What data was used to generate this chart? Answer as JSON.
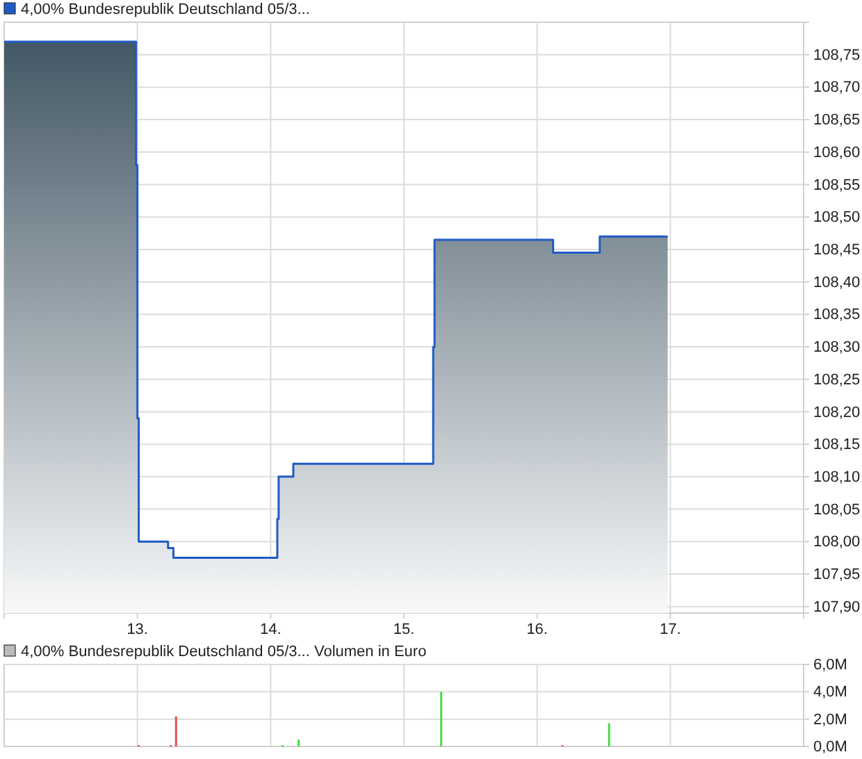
{
  "chart_data": [
    {
      "type": "area",
      "legend": "top left",
      "grid": true,
      "xlim": [
        12,
        18
      ],
      "ylim": [
        107.89,
        108.8
      ],
      "xticks": [
        {
          "value": 13,
          "label": "13."
        },
        {
          "value": 14,
          "label": "14."
        },
        {
          "value": 15,
          "label": "15."
        },
        {
          "value": 16,
          "label": "16."
        },
        {
          "value": 17,
          "label": "17."
        }
      ],
      "yticks": [
        {
          "value": 107.9,
          "label": "107,90"
        },
        {
          "value": 107.95,
          "label": "107,95"
        },
        {
          "value": 108,
          "label": "108,00"
        },
        {
          "value": 108.05,
          "label": "108,05"
        },
        {
          "value": 108.1,
          "label": "108,10"
        },
        {
          "value": 108.15,
          "label": "108,15"
        },
        {
          "value": 108.2,
          "label": "108,20"
        },
        {
          "value": 108.25,
          "label": "108,25"
        },
        {
          "value": 108.3,
          "label": "108,30"
        },
        {
          "value": 108.35,
          "label": "108,35"
        },
        {
          "value": 108.4,
          "label": "108,40"
        },
        {
          "value": 108.45,
          "label": "108,45"
        },
        {
          "value": 108.5,
          "label": "108,50"
        },
        {
          "value": 108.55,
          "label": "108,55"
        },
        {
          "value": 108.6,
          "label": "108,60"
        },
        {
          "value": 108.65,
          "label": "108,65"
        },
        {
          "value": 108.7,
          "label": "108,70"
        },
        {
          "value": 108.75,
          "label": "108,75"
        }
      ],
      "series": [
        {
          "name": "4,00% Bundesrepublik Deutschland 05/3...",
          "color": "#1f5bc4",
          "x": [
            12.0,
            12.99,
            12.99,
            13.0,
            13.0,
            13.01,
            13.01,
            13.23,
            13.23,
            13.27,
            13.27,
            14.05,
            14.05,
            14.06,
            14.06,
            14.17,
            14.17,
            15.22,
            15.22,
            15.23,
            15.23,
            16.12,
            16.12,
            16.47,
            16.47,
            16.98
          ],
          "values": [
            108.77,
            108.77,
            108.58,
            108.58,
            108.19,
            108.19,
            108.0,
            108.0,
            107.99,
            107.99,
            107.975,
            107.975,
            108.035,
            108.035,
            108.1,
            108.1,
            108.12,
            108.12,
            108.3,
            108.3,
            108.465,
            108.465,
            108.445,
            108.445,
            108.47,
            108.47
          ]
        }
      ]
    },
    {
      "type": "bar",
      "legend": "top left",
      "grid": true,
      "tick_labels": "y",
      "xlim": [
        12,
        18
      ],
      "ylim": [
        0,
        6
      ],
      "xticks": [
        13,
        14,
        15,
        16,
        17
      ],
      "yticks": [
        {
          "value": 0,
          "label": "0,0M"
        },
        {
          "value": 2,
          "label": "2,0M"
        },
        {
          "value": 4,
          "label": "4,0M"
        },
        {
          "value": 6,
          "label": "6,0M"
        }
      ],
      "series": [
        {
          "name": "4,00% Bundesrepublik Deutschland 05/3... Volumen in Euro",
          "color": "#bbbbbb",
          "x": [
            13.01,
            13.25,
            13.29,
            14.09,
            14.21,
            15.28,
            16.19,
            16.54
          ],
          "values": [
            0.1,
            0.1,
            2.2,
            0.1,
            0.5,
            4.0,
            0.1,
            1.7
          ],
          "colors": [
            "#e05050",
            "#e05050",
            "#e05050",
            "#44dd44",
            "#44dd44",
            "#44dd44",
            "#e05050",
            "#44dd44"
          ]
        }
      ]
    }
  ]
}
